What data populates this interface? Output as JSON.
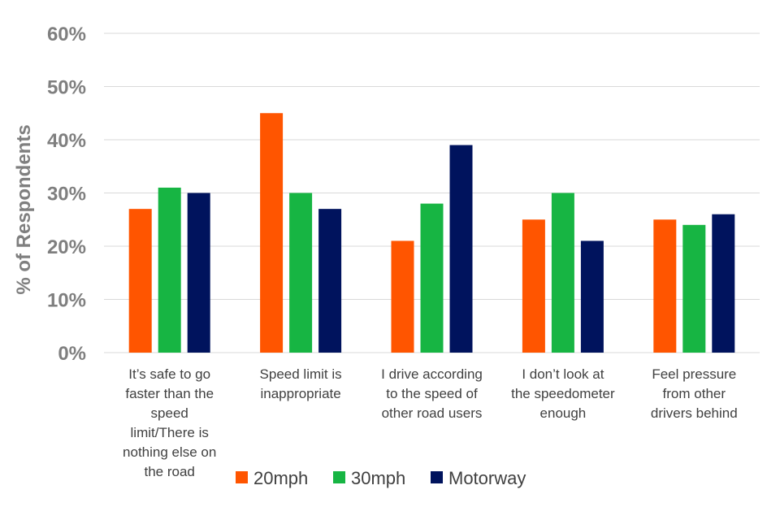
{
  "chart_data": {
    "type": "bar",
    "title": "",
    "xlabel": "",
    "ylabel": "% of Respondents",
    "ylim": [
      0,
      60
    ],
    "yticks": [
      "0%",
      "10%",
      "20%",
      "30%",
      "40%",
      "50%",
      "60%"
    ],
    "grid": true,
    "legend_position": "bottom",
    "categories": [
      [
        "It’s safe to go",
        "faster than the",
        "speed",
        "limit/There  is",
        "nothing  else on",
        "the road"
      ],
      [
        "Speed limit is",
        "inappropriate"
      ],
      [
        "I drive according",
        "to the speed of",
        "other road users"
      ],
      [
        "I don’t look at",
        "the speedometer",
        "enough"
      ],
      [
        "Feel pressure",
        "from other",
        "drivers behind"
      ]
    ],
    "series": [
      {
        "name": "20mph",
        "color": "#FF5500",
        "values": [
          27,
          45,
          21,
          25,
          25
        ]
      },
      {
        "name": "30mph",
        "color": "#17B543",
        "values": [
          31,
          30,
          28,
          30,
          24
        ]
      },
      {
        "name": "Motorway",
        "color": "#00135D",
        "values": [
          30,
          27,
          39,
          21,
          26
        ]
      }
    ]
  }
}
